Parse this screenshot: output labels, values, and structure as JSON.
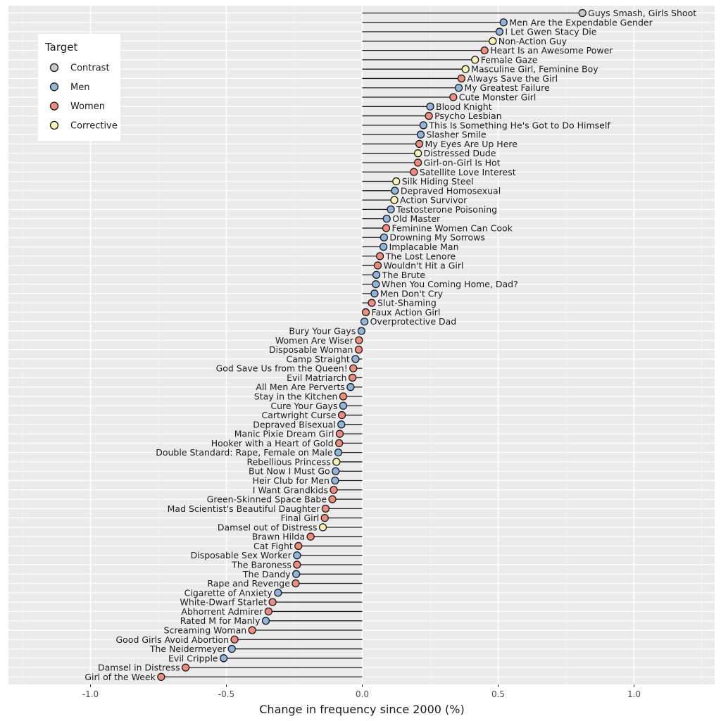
{
  "chart_data": {
    "type": "lollipop",
    "orientation": "horizontal",
    "xlabel": "Change in frequency since 2000 (%)",
    "ylabel": "",
    "xlim": [
      -1.25,
      1.3
    ],
    "xticks": [
      -1.0,
      -0.5,
      0.0,
      0.5,
      1.0
    ],
    "xtick_labels": [
      "-1.0",
      "-0.5",
      "0.0",
      "0.5",
      "1.0"
    ],
    "grid": true,
    "legend": {
      "title": "Target",
      "position": "top-left",
      "entries": [
        {
          "name": "Contrast",
          "color": "#c8c8c8"
        },
        {
          "name": "Men",
          "color": "#8fb4dd"
        },
        {
          "name": "Women",
          "color": "#ee8c80"
        },
        {
          "name": "Corrective",
          "color": "#fbf5b4"
        }
      ]
    },
    "points": [
      {
        "label": "Guys Smash, Girls Shoot",
        "value": 0.81,
        "target": "Contrast"
      },
      {
        "label": "Men Are the Expendable Gender",
        "value": 0.52,
        "target": "Men"
      },
      {
        "label": "I Let Gwen Stacy Die",
        "value": 0.505,
        "target": "Men"
      },
      {
        "label": "Non-Action Guy",
        "value": 0.48,
        "target": "Corrective"
      },
      {
        "label": "Heart Is an Awesome Power",
        "value": 0.45,
        "target": "Women"
      },
      {
        "label": "Female Gaze",
        "value": 0.415,
        "target": "Corrective"
      },
      {
        "label": "Masculine Girl, Feminine Boy",
        "value": 0.38,
        "target": "Corrective"
      },
      {
        "label": "Always Save the Girl",
        "value": 0.365,
        "target": "Women"
      },
      {
        "label": "My Greatest Failure",
        "value": 0.355,
        "target": "Men"
      },
      {
        "label": "Cute Monster Girl",
        "value": 0.335,
        "target": "Women"
      },
      {
        "label": "Blood Knight",
        "value": 0.25,
        "target": "Men"
      },
      {
        "label": "Psycho Lesbian",
        "value": 0.245,
        "target": "Women"
      },
      {
        "label": "This Is Something He's Got to Do Himself",
        "value": 0.225,
        "target": "Men"
      },
      {
        "label": "Slasher Smile",
        "value": 0.215,
        "target": "Men"
      },
      {
        "label": "My Eyes Are Up Here",
        "value": 0.21,
        "target": "Women"
      },
      {
        "label": "Distressed Dude",
        "value": 0.205,
        "target": "Corrective"
      },
      {
        "label": "Girl-on-Girl Is Hot",
        "value": 0.205,
        "target": "Women"
      },
      {
        "label": "Satellite Love Interest",
        "value": 0.19,
        "target": "Women"
      },
      {
        "label": "Silk Hiding Steel",
        "value": 0.125,
        "target": "Corrective"
      },
      {
        "label": "Depraved Homosexual",
        "value": 0.12,
        "target": "Men"
      },
      {
        "label": "Action Survivor",
        "value": 0.118,
        "target": "Corrective"
      },
      {
        "label": "Testosterone Poisoning",
        "value": 0.105,
        "target": "Men"
      },
      {
        "label": "Old Master",
        "value": 0.09,
        "target": "Men"
      },
      {
        "label": "Feminine Women Can Cook",
        "value": 0.088,
        "target": "Women"
      },
      {
        "label": "Drowning My Sorrows",
        "value": 0.08,
        "target": "Men"
      },
      {
        "label": "Implacable Man",
        "value": 0.078,
        "target": "Men"
      },
      {
        "label": "The Lost Lenore",
        "value": 0.065,
        "target": "Women"
      },
      {
        "label": "Wouldn't Hit a Girl",
        "value": 0.057,
        "target": "Women"
      },
      {
        "label": "The Brute",
        "value": 0.052,
        "target": "Men"
      },
      {
        "label": "When You Coming Home, Dad?",
        "value": 0.05,
        "target": "Men"
      },
      {
        "label": "Men Don't Cry",
        "value": 0.045,
        "target": "Men"
      },
      {
        "label": "Slut-Shaming",
        "value": 0.035,
        "target": "Women"
      },
      {
        "label": "Faux Action Girl",
        "value": 0.013,
        "target": "Women"
      },
      {
        "label": "Overprotective Dad",
        "value": 0.008,
        "target": "Men"
      },
      {
        "label": "Bury Your Gays",
        "value": -0.003,
        "target": "Men"
      },
      {
        "label": "Women Are Wiser",
        "value": -0.012,
        "target": "Women"
      },
      {
        "label": "Disposable Woman",
        "value": -0.013,
        "target": "Women"
      },
      {
        "label": "Camp Straight",
        "value": -0.025,
        "target": "Men"
      },
      {
        "label": "God Save Us from the Queen!",
        "value": -0.033,
        "target": "Women"
      },
      {
        "label": "Evil Matriarch",
        "value": -0.036,
        "target": "Women"
      },
      {
        "label": "All Men Are Perverts",
        "value": -0.043,
        "target": "Men"
      },
      {
        "label": "Stay in the Kitchen",
        "value": -0.07,
        "target": "Women"
      },
      {
        "label": "Cure Your Gays",
        "value": -0.07,
        "target": "Men"
      },
      {
        "label": "Cartwright Curse",
        "value": -0.075,
        "target": "Women"
      },
      {
        "label": "Depraved Bisexual",
        "value": -0.077,
        "target": "Men"
      },
      {
        "label": "Manic Pixie Dream Girl",
        "value": -0.083,
        "target": "Women"
      },
      {
        "label": "Hooker with a Heart of Gold",
        "value": -0.085,
        "target": "Women"
      },
      {
        "label": "Double Standard: Rape, Female on Male",
        "value": -0.088,
        "target": "Men"
      },
      {
        "label": "Rebellious Princess",
        "value": -0.095,
        "target": "Corrective"
      },
      {
        "label": "But Now I Must Go",
        "value": -0.098,
        "target": "Men"
      },
      {
        "label": "Heir Club for Men",
        "value": -0.1,
        "target": "Men"
      },
      {
        "label": "I Want Grandkids",
        "value": -0.105,
        "target": "Women"
      },
      {
        "label": "Green-Skinned Space Babe",
        "value": -0.11,
        "target": "Women"
      },
      {
        "label": "Mad Scientist's Beautiful Daughter",
        "value": -0.135,
        "target": "Women"
      },
      {
        "label": "Final Girl",
        "value": -0.138,
        "target": "Women"
      },
      {
        "label": "Damsel out of Distress",
        "value": -0.145,
        "target": "Corrective"
      },
      {
        "label": "Brawn Hilda",
        "value": -0.19,
        "target": "Women"
      },
      {
        "label": "Cat Fight",
        "value": -0.235,
        "target": "Women"
      },
      {
        "label": "Disposable Sex Worker",
        "value": -0.24,
        "target": "Men"
      },
      {
        "label": "The Baroness",
        "value": -0.24,
        "target": "Women"
      },
      {
        "label": "The Dandy",
        "value": -0.243,
        "target": "Men"
      },
      {
        "label": "Rape and Revenge",
        "value": -0.245,
        "target": "Women"
      },
      {
        "label": "Cigarette of Anxiety",
        "value": -0.31,
        "target": "Men"
      },
      {
        "label": "White-Dwarf Starlet",
        "value": -0.33,
        "target": "Women"
      },
      {
        "label": "Abhorrent Admirer",
        "value": -0.345,
        "target": "Women"
      },
      {
        "label": "Rated M for Manly",
        "value": -0.355,
        "target": "Men"
      },
      {
        "label": "Screaming Woman",
        "value": -0.405,
        "target": "Women"
      },
      {
        "label": "Good Girls Avoid Abortion",
        "value": -0.47,
        "target": "Women"
      },
      {
        "label": "The Neidermeyer",
        "value": -0.48,
        "target": "Men"
      },
      {
        "label": "Evil Cripple",
        "value": -0.51,
        "target": "Men"
      },
      {
        "label": "Damsel in Distress",
        "value": -0.65,
        "target": "Women"
      },
      {
        "label": "Girl of the Week",
        "value": -0.74,
        "target": "Women"
      }
    ]
  }
}
